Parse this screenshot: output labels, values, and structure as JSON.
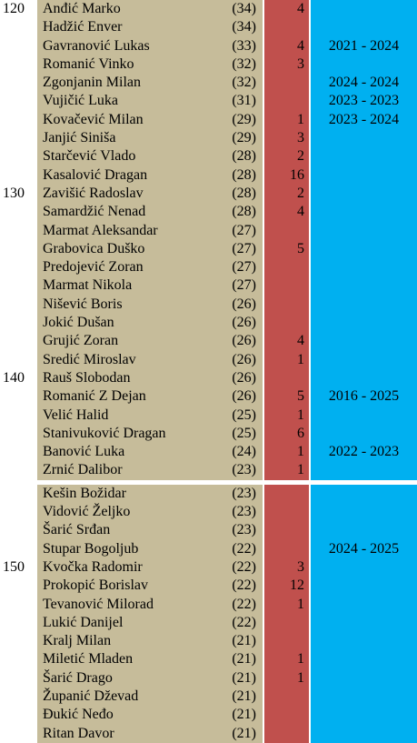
{
  "rows": [
    {
      "num": "120",
      "name": "Anđić Marko",
      "age": "(34)",
      "count": "4",
      "period": ""
    },
    {
      "num": "",
      "name": "Hadžić Enver",
      "age": "(34)",
      "count": "",
      "period": ""
    },
    {
      "num": "",
      "name": "Gavranović Lukas",
      "age": "(33)",
      "count": "4",
      "period": "2021 - 2024"
    },
    {
      "num": "",
      "name": "Romanić Vinko",
      "age": "(32)",
      "count": "3",
      "period": ""
    },
    {
      "num": "",
      "name": "Zgonjanin Milan",
      "age": "(32)",
      "count": "",
      "period": "2024 - 2024"
    },
    {
      "num": "",
      "name": "Vujičić Luka",
      "age": "(31)",
      "count": "",
      "period": "2023 - 2023"
    },
    {
      "num": "",
      "name": "Kovačević Milan",
      "age": "(29)",
      "count": "1",
      "period": "2023 - 2024"
    },
    {
      "num": "",
      "name": "Janjić Siniša",
      "age": "(29)",
      "count": "3",
      "period": ""
    },
    {
      "num": "",
      "name": "Starčević Vlado",
      "age": "(28)",
      "count": "2",
      "period": ""
    },
    {
      "num": "",
      "name": "Kasalović Dragan",
      "age": "(28)",
      "count": "16",
      "period": ""
    },
    {
      "num": "130",
      "name": "Zavišić Radoslav",
      "age": "(28)",
      "count": "2",
      "period": ""
    },
    {
      "num": "",
      "name": "Samardžić Nenad",
      "age": "(28)",
      "count": "4",
      "period": ""
    },
    {
      "num": "",
      "name": "Marmat Aleksandar",
      "age": "(27)",
      "count": "",
      "period": ""
    },
    {
      "num": "",
      "name": "Grabovica Duško",
      "age": "(27)",
      "count": "5",
      "period": ""
    },
    {
      "num": "",
      "name": "Predojević Zoran",
      "age": "(27)",
      "count": "",
      "period": ""
    },
    {
      "num": "",
      "name": "Marmat Nikola",
      "age": "(27)",
      "count": "",
      "period": ""
    },
    {
      "num": "",
      "name": "Nišević Boris",
      "age": "(26)",
      "count": "",
      "period": ""
    },
    {
      "num": "",
      "name": "Jokić Dušan",
      "age": "(26)",
      "count": "",
      "period": ""
    },
    {
      "num": "",
      "name": "Grujić Zoran",
      "age": "(26)",
      "count": "4",
      "period": ""
    },
    {
      "num": "",
      "name": "Sredić Miroslav",
      "age": "(26)",
      "count": "1",
      "period": ""
    },
    {
      "num": "140",
      "name": "Rauš Slobodan",
      "age": "(26)",
      "count": "",
      "period": ""
    },
    {
      "num": "",
      "name": "Romanić Z Dejan",
      "age": "(26)",
      "count": "5",
      "period": "2016 - 2025"
    },
    {
      "num": "",
      "name": "Velić Halid",
      "age": "(25)",
      "count": "1",
      "period": ""
    },
    {
      "num": "",
      "name": "Stanivuković Dragan",
      "age": "(25)",
      "count": "6",
      "period": ""
    },
    {
      "num": "",
      "name": "Banović Luka",
      "age": "(24)",
      "count": "1",
      "period": "2022 - 2023"
    },
    {
      "num": "",
      "name": "Zrnić Dalibor",
      "age": "(23)",
      "count": "1",
      "period": ""
    },
    {
      "num": "",
      "name": "Kešin Božidar",
      "age": "(23)",
      "count": "",
      "period": ""
    },
    {
      "num": "",
      "name": "Vidović Željko",
      "age": "(23)",
      "count": "",
      "period": ""
    },
    {
      "num": "",
      "name": "Šarić Srđan",
      "age": "(23)",
      "count": "",
      "period": ""
    },
    {
      "num": "",
      "name": "Stupar Bogoljub",
      "age": "(22)",
      "count": "",
      "period": "2024 - 2025"
    },
    {
      "num": "150",
      "name": "Kvočka Radomir",
      "age": "(22)",
      "count": "3",
      "period": ""
    },
    {
      "num": "",
      "name": "Prokopić Borislav",
      "age": "(22)",
      "count": "12",
      "period": ""
    },
    {
      "num": "",
      "name": "Tevanović Milorad",
      "age": "(22)",
      "count": "1",
      "period": ""
    },
    {
      "num": "",
      "name": "Lukić Danijel",
      "age": "(22)",
      "count": "",
      "period": ""
    },
    {
      "num": "",
      "name": "Kralj Milan",
      "age": "(21)",
      "count": "",
      "period": ""
    },
    {
      "num": "",
      "name": "Miletić Mladen",
      "age": "(21)",
      "count": "1",
      "period": ""
    },
    {
      "num": "",
      "name": "Šarić Drago",
      "age": "(21)",
      "count": "1",
      "period": ""
    },
    {
      "num": "",
      "name": "Županić Dževad",
      "age": "(21)",
      "count": "",
      "period": ""
    },
    {
      "num": "",
      "name": "Đukić Neđo",
      "age": "(21)",
      "count": "",
      "period": ""
    },
    {
      "num": "",
      "name": "Ritan Davor",
      "age": "(21)",
      "count": "",
      "period": ""
    }
  ],
  "colors": {
    "name_column": "#c6bc9a",
    "count_column": "#c0504d",
    "period_column": "#00b0f0"
  }
}
